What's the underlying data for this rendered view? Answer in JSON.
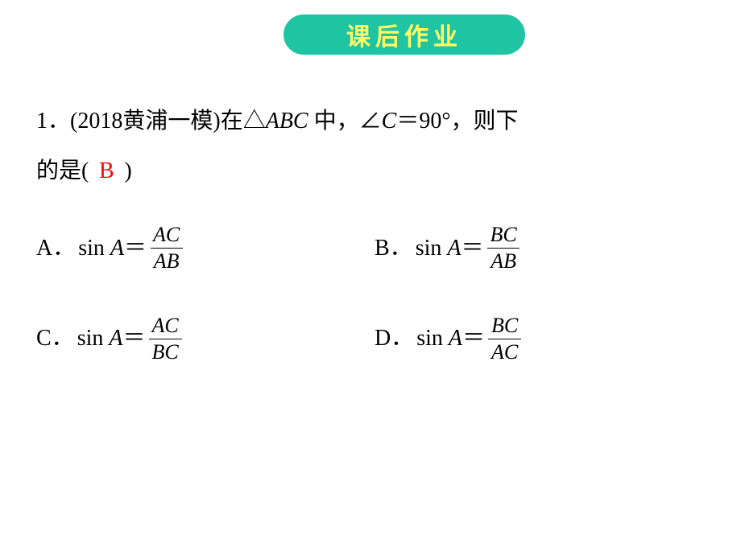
{
  "badge": {
    "text": "课后作业",
    "bg_color": "#1fc4a2",
    "text_color": "#ffff66",
    "font_size": 30
  },
  "question": {
    "number": "1",
    "source_prefix": "(2018",
    "source_name": "黄浦一模",
    "source_suffix": ")",
    "stem_part1": "在",
    "triangle": "△",
    "triangle_name": "ABC",
    "stem_part2": " 中，",
    "angle": "∠",
    "angle_name": "C",
    "equals": "＝",
    "angle_value": "90°",
    "stem_part3": "，则下",
    "stem_line2_prefix": "的是",
    "paren_open": "(",
    "paren_close": ")",
    "answer": "B",
    "answer_color": "#ff0000",
    "font_size": 28,
    "text_color": "#000000"
  },
  "choices": {
    "font_size": 28,
    "frac_font_size": 26,
    "items": [
      {
        "label": "A．",
        "lhs_func": "sin",
        "lhs_arg": "A",
        "eq": "＝",
        "num": "AC",
        "den": "AB"
      },
      {
        "label": "B．",
        "lhs_func": "sin",
        "lhs_arg": "A",
        "eq": "＝",
        "num": "BC",
        "den": "AB"
      },
      {
        "label": "C．",
        "lhs_func": "sin",
        "lhs_arg": "A",
        "eq": "＝",
        "num": "AC",
        "den": "BC"
      },
      {
        "label": "D．",
        "lhs_func": "sin",
        "lhs_arg": "A",
        "eq": "＝",
        "num": "BC",
        "den": "AC"
      }
    ]
  }
}
